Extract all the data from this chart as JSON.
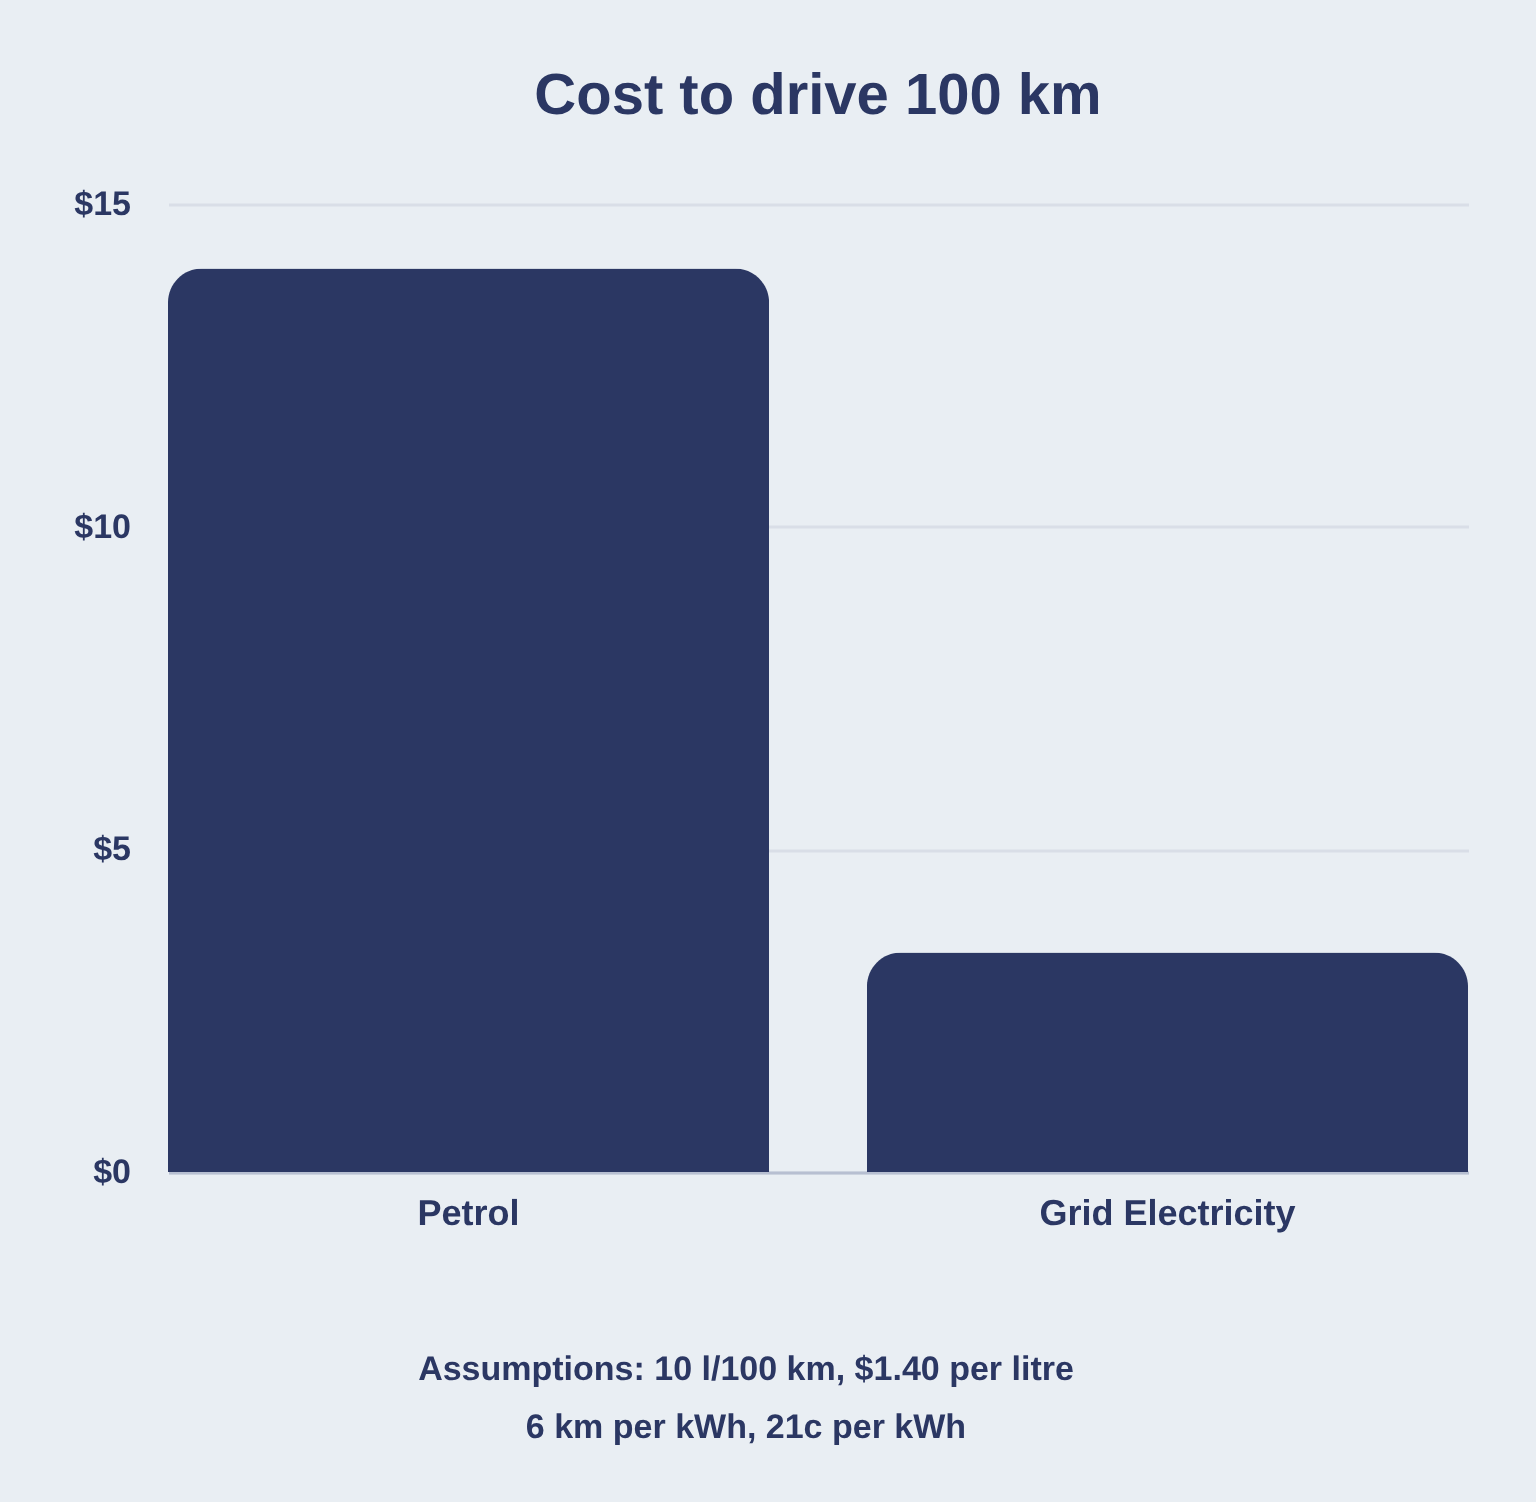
{
  "chart_data": {
    "type": "bar",
    "title": "Cost to drive 100 km",
    "categories": [
      "Petrol",
      "Grid Electricity"
    ],
    "values": [
      14,
      3.4
    ],
    "color": "#2b3763",
    "ylim": [
      0,
      15
    ],
    "yticks": [
      {
        "value": 0,
        "label": "$0"
      },
      {
        "value": 5,
        "label": "$5"
      },
      {
        "value": 10,
        "label": "$10"
      },
      {
        "value": 15,
        "label": "$15"
      }
    ],
    "grid": "y",
    "annotations": [
      "Assumptions: 10 l/100 km, $1.40 per litre",
      "6 km per kWh, 21c per kWh"
    ]
  }
}
